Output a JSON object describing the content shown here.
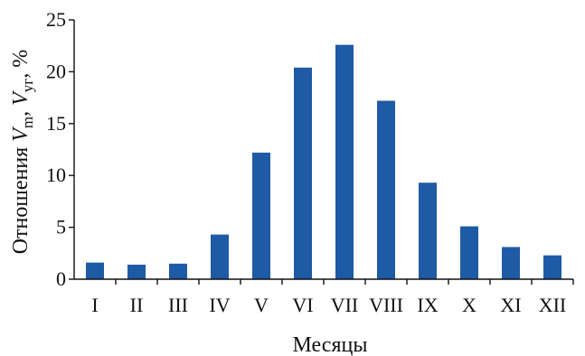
{
  "chart_data": {
    "type": "bar",
    "categories": [
      "I",
      "II",
      "III",
      "IV",
      "V",
      "VI",
      "VII",
      "VIII",
      "IX",
      "X",
      "XI",
      "XII"
    ],
    "values": [
      1.6,
      1.4,
      1.5,
      4.3,
      12.2,
      20.4,
      22.6,
      17.2,
      9.3,
      5.1,
      3.1,
      2.3
    ],
    "xlabel": "Месяцы",
    "ylabel": {
      "prefix": "Отношения ",
      "v1": "V",
      "sub1": "m",
      "sep": ", ",
      "v2": "V",
      "sub2": "уг",
      "suffix": ", %"
    },
    "ylim": [
      0,
      25
    ],
    "yticks": [
      0,
      5,
      10,
      15,
      20,
      25
    ],
    "grid": false,
    "colors": {
      "bar": "#1f5aa6",
      "axis": "#111111"
    }
  }
}
